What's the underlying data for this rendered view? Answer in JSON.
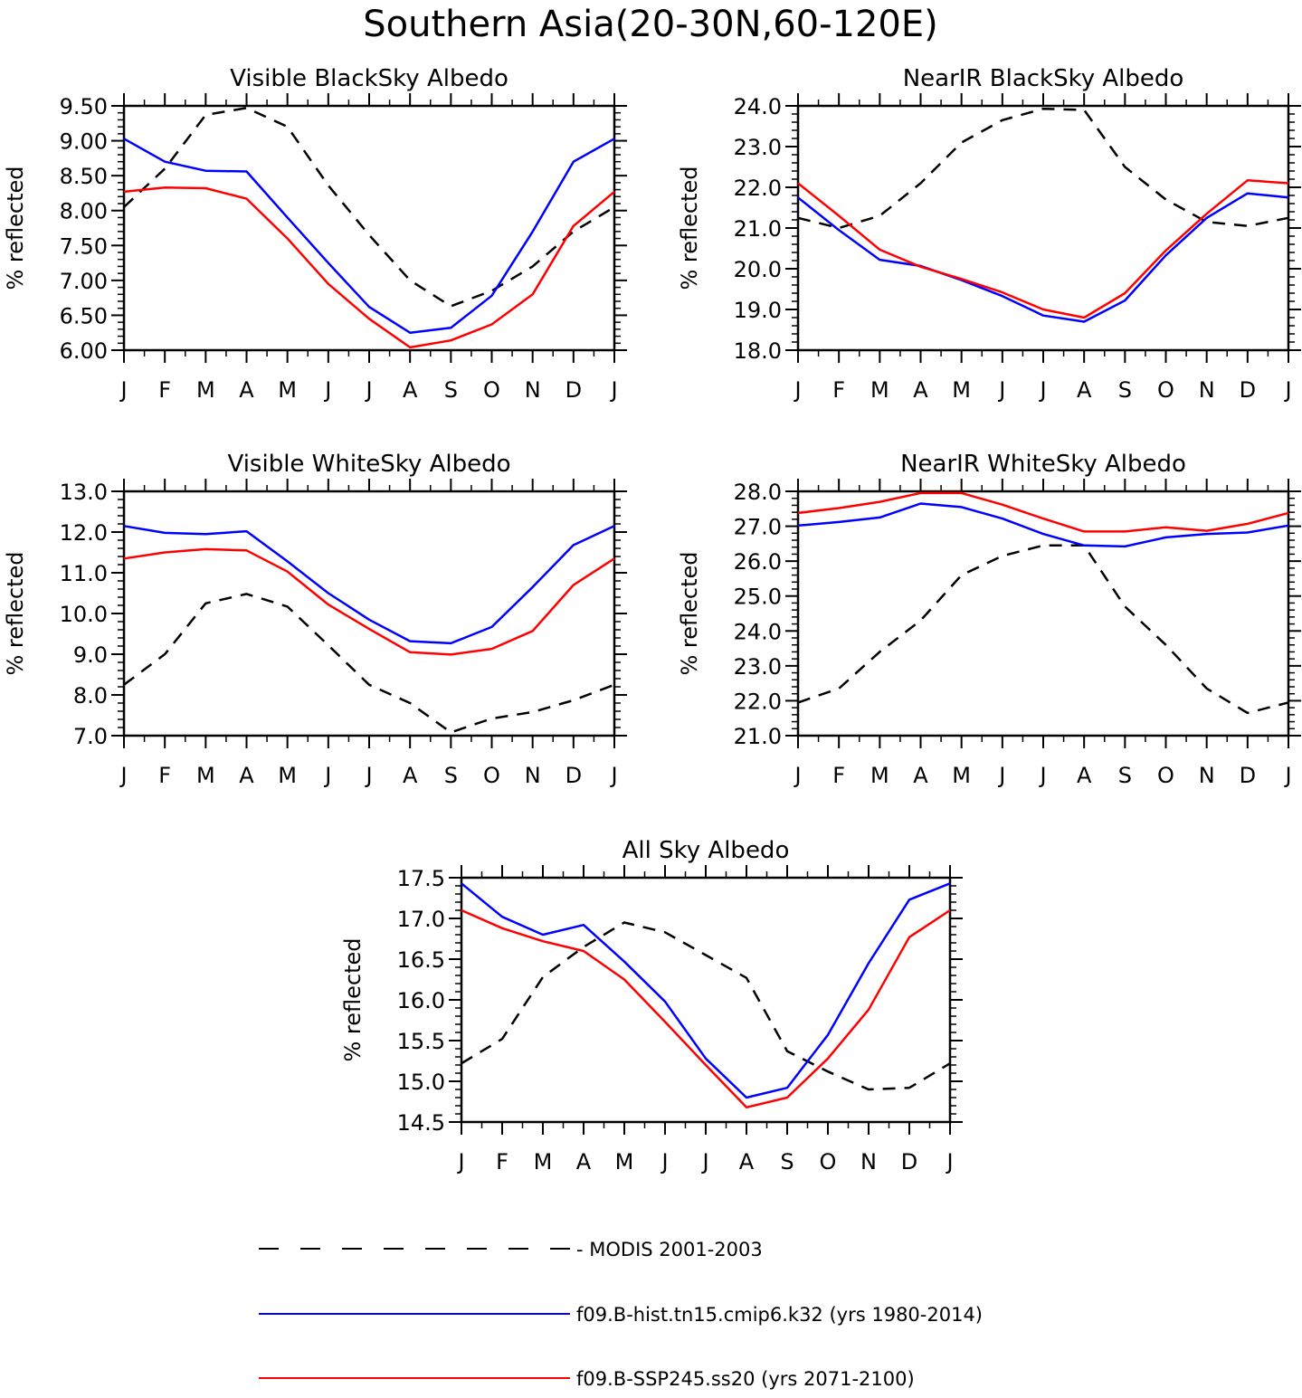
{
  "title": "Southern Asia(20-30N,60-120E)",
  "months": [
    "J",
    "F",
    "M",
    "A",
    "M",
    "J",
    "J",
    "A",
    "S",
    "O",
    "N",
    "D",
    "J"
  ],
  "legend": [
    {
      "label": "MODIS 2001-2003",
      "color": "#000000",
      "style": "dashed"
    },
    {
      "label": "f09.B-hist.tn15.cmip6.k32 (yrs 1980-2014)",
      "color": "#0000ff",
      "style": "solid"
    },
    {
      "label": "f09.B-SSP245.ss20 (yrs 2071-2100)",
      "color": "#ff0000",
      "style": "solid"
    }
  ],
  "chart_data": [
    {
      "type": "line",
      "title": "Visible BlackSky Albedo",
      "ylabel": "% reflected",
      "ylim": [
        6.0,
        9.5
      ],
      "yticks": [
        "6.00",
        "6.50",
        "7.00",
        "7.50",
        "8.00",
        "8.50",
        "9.00",
        "9.50"
      ],
      "categories": [
        "J",
        "F",
        "M",
        "A",
        "M",
        "J",
        "J",
        "A",
        "S",
        "O",
        "N",
        "D",
        "J"
      ],
      "series": [
        {
          "name": "MODIS 2001-2003",
          "values": [
            8.05,
            8.6,
            9.37,
            9.47,
            9.2,
            8.36,
            7.65,
            7.0,
            6.63,
            6.85,
            7.2,
            7.7,
            8.05
          ]
        },
        {
          "name": "f09.B-hist.tn15.cmip6.k32 (yrs 1980-2014)",
          "values": [
            9.03,
            8.7,
            8.57,
            8.56,
            7.9,
            7.25,
            6.62,
            6.25,
            6.32,
            6.78,
            7.7,
            8.7,
            9.03
          ]
        },
        {
          "name": "f09.B-SSP245.ss20 (yrs 2071-2100)",
          "values": [
            8.27,
            8.33,
            8.32,
            8.17,
            7.6,
            6.95,
            6.45,
            6.04,
            6.14,
            6.37,
            6.8,
            7.78,
            8.27
          ]
        }
      ]
    },
    {
      "type": "line",
      "title": "NearIR BlackSky Albedo",
      "ylabel": "% reflected",
      "ylim": [
        18.0,
        24.0
      ],
      "yticks": [
        "18.0",
        "19.0",
        "20.0",
        "21.0",
        "22.0",
        "23.0",
        "24.0"
      ],
      "categories": [
        "J",
        "F",
        "M",
        "A",
        "M",
        "J",
        "J",
        "A",
        "S",
        "O",
        "N",
        "D",
        "J"
      ],
      "series": [
        {
          "name": "MODIS 2001-2003",
          "values": [
            21.25,
            21.0,
            21.3,
            22.1,
            23.1,
            23.65,
            23.93,
            23.9,
            22.5,
            21.7,
            21.15,
            21.05,
            21.25
          ]
        },
        {
          "name": "f09.B-hist.tn15.cmip6.k32 (yrs 1980-2014)",
          "values": [
            21.75,
            20.95,
            20.22,
            20.07,
            19.72,
            19.33,
            18.85,
            18.7,
            19.22,
            20.33,
            21.25,
            21.85,
            21.75
          ]
        },
        {
          "name": "f09.B-SSP245.ss20 (yrs 2071-2100)",
          "values": [
            22.1,
            21.3,
            20.47,
            20.05,
            19.75,
            19.42,
            19.0,
            18.8,
            19.4,
            20.45,
            21.35,
            22.17,
            22.1
          ]
        }
      ]
    },
    {
      "type": "line",
      "title": "Visible WhiteSky Albedo",
      "ylabel": "% reflected",
      "ylim": [
        7.0,
        13.0
      ],
      "yticks": [
        "7.0",
        "8.0",
        "9.0",
        "10.0",
        "11.0",
        "12.0",
        "13.0"
      ],
      "categories": [
        "J",
        "F",
        "M",
        "A",
        "M",
        "J",
        "J",
        "A",
        "S",
        "O",
        "N",
        "D",
        "J"
      ],
      "series": [
        {
          "name": "MODIS 2001-2003",
          "values": [
            8.25,
            9.0,
            10.25,
            10.48,
            10.17,
            9.22,
            8.25,
            7.8,
            7.08,
            7.42,
            7.58,
            7.87,
            8.25
          ]
        },
        {
          "name": "f09.B-hist.tn15.cmip6.k32 (yrs 1980-2014)",
          "values": [
            12.15,
            11.98,
            11.95,
            12.02,
            11.28,
            10.5,
            9.85,
            9.32,
            9.27,
            9.67,
            10.65,
            11.68,
            12.15
          ]
        },
        {
          "name": "f09.B-SSP245.ss20 (yrs 2071-2100)",
          "values": [
            11.35,
            11.5,
            11.58,
            11.55,
            11.03,
            10.22,
            9.62,
            9.05,
            8.99,
            9.13,
            9.57,
            10.7,
            11.35
          ]
        }
      ]
    },
    {
      "type": "line",
      "title": "NearIR WhiteSky Albedo",
      "ylabel": "% reflected",
      "ylim": [
        21.0,
        28.0
      ],
      "yticks": [
        "21.0",
        "22.0",
        "23.0",
        "24.0",
        "25.0",
        "26.0",
        "27.0",
        "28.0"
      ],
      "categories": [
        "J",
        "F",
        "M",
        "A",
        "M",
        "J",
        "J",
        "A",
        "S",
        "O",
        "N",
        "D",
        "J"
      ],
      "series": [
        {
          "name": "MODIS 2001-2003",
          "values": [
            21.95,
            22.35,
            23.4,
            24.3,
            25.6,
            26.15,
            26.45,
            26.45,
            24.7,
            23.6,
            22.35,
            21.65,
            21.95
          ]
        },
        {
          "name": "f09.B-hist.tn15.cmip6.k32 (yrs 1980-2014)",
          "values": [
            27.02,
            27.12,
            27.25,
            27.65,
            27.55,
            27.22,
            26.78,
            26.45,
            26.42,
            26.68,
            26.78,
            26.82,
            27.02
          ]
        },
        {
          "name": "f09.B-SSP245.ss20 (yrs 2071-2100)",
          "values": [
            27.38,
            27.52,
            27.7,
            27.95,
            27.95,
            27.62,
            27.22,
            26.85,
            26.85,
            26.97,
            26.87,
            27.07,
            27.38
          ]
        }
      ]
    },
    {
      "type": "line",
      "title": "All Sky Albedo",
      "ylabel": "% reflected",
      "ylim": [
        14.5,
        17.5
      ],
      "yticks": [
        "14.5",
        "15.0",
        "15.5",
        "16.0",
        "16.5",
        "17.0",
        "17.5"
      ],
      "categories": [
        "J",
        "F",
        "M",
        "A",
        "M",
        "J",
        "J",
        "A",
        "S",
        "O",
        "N",
        "D",
        "J"
      ],
      "series": [
        {
          "name": "MODIS 2001-2003",
          "values": [
            15.22,
            15.52,
            16.28,
            16.65,
            16.95,
            16.83,
            16.55,
            16.27,
            15.37,
            15.12,
            14.9,
            14.92,
            15.22
          ]
        },
        {
          "name": "f09.B-hist.tn15.cmip6.k32 (yrs 1980-2014)",
          "values": [
            17.43,
            17.02,
            16.8,
            16.92,
            16.47,
            15.98,
            15.28,
            14.8,
            14.92,
            15.57,
            16.45,
            17.23,
            17.43
          ]
        },
        {
          "name": "f09.B-SSP245.ss20 (yrs 2071-2100)",
          "values": [
            17.1,
            16.88,
            16.72,
            16.6,
            16.25,
            15.73,
            15.2,
            14.68,
            14.8,
            15.28,
            15.88,
            16.77,
            17.1
          ]
        }
      ]
    }
  ]
}
